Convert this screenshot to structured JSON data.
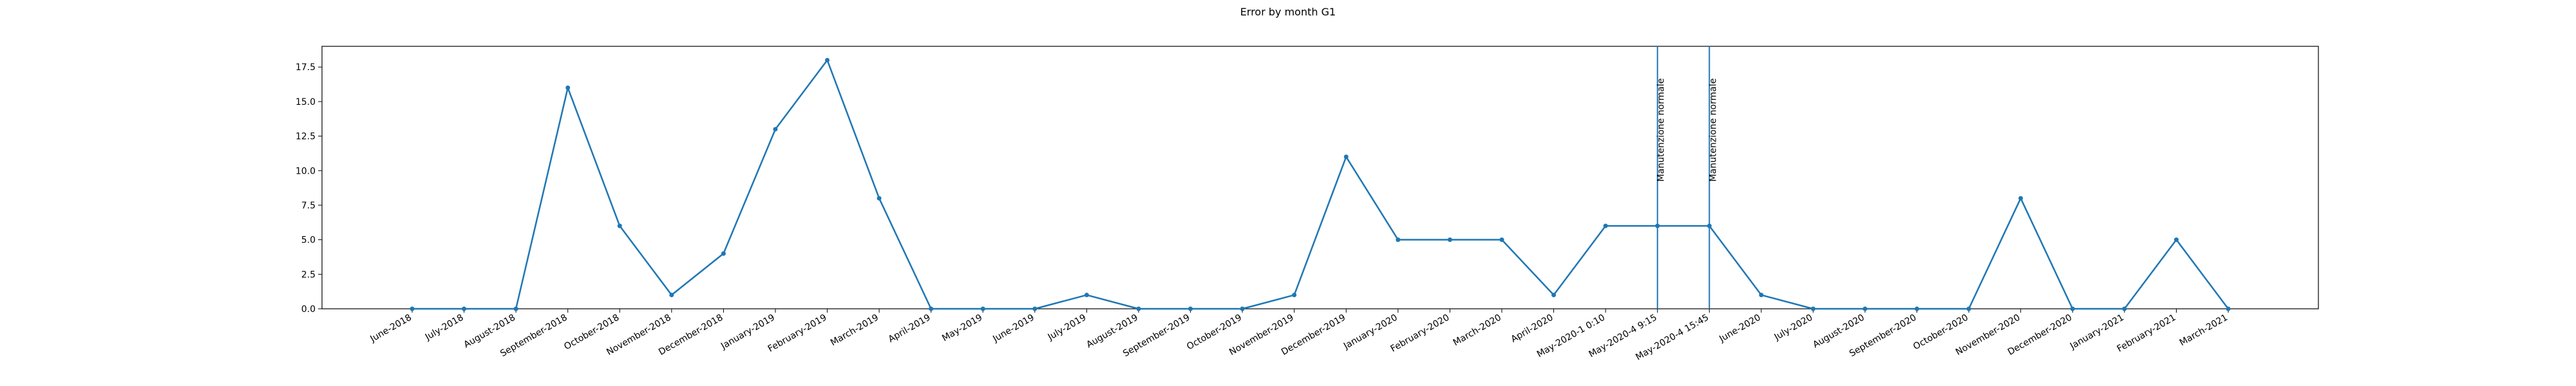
{
  "chart_data": {
    "type": "line",
    "title": "Error by month G1",
    "xlabel": "",
    "ylabel": "",
    "ylim": [
      0,
      19
    ],
    "yticks": [
      "0.0",
      "2.5",
      "5.0",
      "7.5",
      "10.0",
      "12.5",
      "15.0",
      "17.5"
    ],
    "grid": false,
    "legend": "none",
    "colors": {
      "line": "#1f77b4",
      "axis": "#000000",
      "background": "#ffffff"
    },
    "categories": [
      "June-2018",
      "July-2018",
      "August-2018",
      "September-2018",
      "October-2018",
      "November-2018",
      "December-2018",
      "January-2019",
      "February-2019",
      "March-2019",
      "April-2019",
      "May-2019",
      "June-2019",
      "July-2019",
      "August-2019",
      "September-2019",
      "October-2019",
      "November-2019",
      "December-2019",
      "January-2020",
      "February-2020",
      "March-2020",
      "April-2020",
      "May-2020-1 0:10",
      "May-2020-4 9:15",
      "May-2020-4 15:45",
      "June-2020",
      "July-2020",
      "August-2020",
      "September-2020",
      "October-2020",
      "November-2020",
      "December-2020",
      "January-2021",
      "February-2021",
      "March-2021"
    ],
    "values": [
      0,
      0,
      0,
      16,
      6,
      1,
      4,
      13,
      18,
      8,
      0,
      0,
      0,
      1,
      0,
      0,
      0,
      1,
      11,
      5,
      5,
      5,
      1,
      6,
      6,
      6,
      1,
      0,
      0,
      0,
      0,
      8,
      0,
      0,
      5,
      0
    ],
    "annotations": [
      {
        "category": "May-2020-4 9:15",
        "text": "Manutenzione normale"
      },
      {
        "category": "May-2020-4 15:45",
        "text": "Manutenzione normale"
      }
    ]
  }
}
